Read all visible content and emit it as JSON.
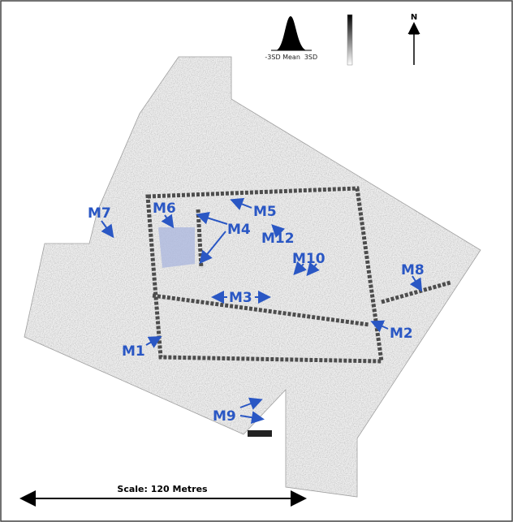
{
  "legend": {
    "low": "-3SD",
    "mid": "Mean",
    "high": "3SD"
  },
  "north": "N",
  "labels": [
    "M7",
    "M6",
    "M5",
    "M4",
    "M12",
    "M10",
    "M8",
    "M3",
    "M2",
    "M1",
    "M9"
  ],
  "scale": "Scale: 120 Metres"
}
